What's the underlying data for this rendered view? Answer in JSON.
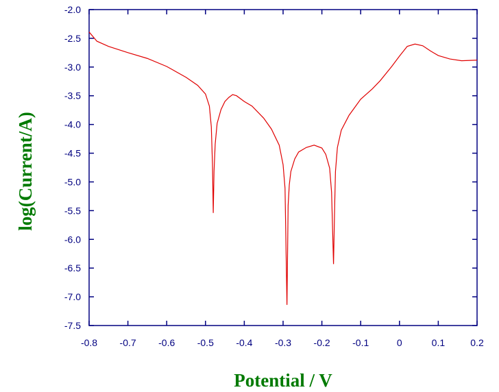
{
  "chart_data": {
    "type": "line",
    "xlabel": "Potential / V",
    "ylabel": "log(Current/A)",
    "x": [
      -0.8,
      -0.78,
      -0.75,
      -0.7,
      -0.65,
      -0.6,
      -0.55,
      -0.52,
      -0.5,
      -0.49,
      -0.485,
      -0.482,
      -0.48,
      -0.478,
      -0.475,
      -0.47,
      -0.46,
      -0.45,
      -0.44,
      -0.43,
      -0.42,
      -0.4,
      -0.38,
      -0.35,
      -0.33,
      -0.31,
      -0.3,
      -0.295,
      -0.29,
      -0.287,
      -0.284,
      -0.28,
      -0.27,
      -0.26,
      -0.24,
      -0.22,
      -0.2,
      -0.19,
      -0.18,
      -0.175,
      -0.17,
      -0.167,
      -0.165,
      -0.16,
      -0.15,
      -0.13,
      -0.1,
      -0.07,
      -0.05,
      -0.02,
      0,
      0.02,
      0.04,
      0.06,
      0.08,
      0.1,
      0.13,
      0.16,
      0.2
    ],
    "series": [
      {
        "color": "#e00000",
        "values": [
          -2.39,
          -2.55,
          -2.64,
          -2.75,
          -2.85,
          -2.99,
          -3.18,
          -3.32,
          -3.47,
          -3.68,
          -4.04,
          -4.7,
          -5.54,
          -4.82,
          -4.34,
          -3.98,
          -3.74,
          -3.6,
          -3.53,
          -3.48,
          -3.5,
          -3.6,
          -3.68,
          -3.89,
          -4.08,
          -4.36,
          -4.7,
          -5.11,
          -7.14,
          -5.41,
          -5.05,
          -4.82,
          -4.6,
          -4.48,
          -4.4,
          -4.36,
          -4.41,
          -4.52,
          -4.76,
          -5.18,
          -6.43,
          -5.41,
          -4.82,
          -4.4,
          -4.1,
          -3.84,
          -3.56,
          -3.38,
          -3.24,
          -2.99,
          -2.81,
          -2.64,
          -2.6,
          -2.63,
          -2.72,
          -2.8,
          -2.86,
          -2.89,
          -2.88
        ]
      }
    ],
    "xlim": [
      -0.8,
      0.2
    ],
    "xticks": [
      -0.8,
      -0.7,
      -0.6,
      -0.5,
      -0.4,
      -0.3,
      -0.2,
      -0.1,
      0,
      0.1,
      0.2
    ],
    "ylim": [
      -7.5,
      -2.0
    ],
    "yticks": [
      {
        "value": -2,
        "label": "-2.0"
      },
      -2.5,
      {
        "value": -3,
        "label": "-3.0"
      },
      -3.5,
      {
        "value": -4,
        "label": "-4.0"
      },
      -4.5,
      {
        "value": -5,
        "label": "-5.0"
      },
      -5.5,
      {
        "value": -6,
        "label": "-6.0"
      },
      -6.5,
      {
        "value": -7,
        "label": "-7.0"
      },
      -7.5
    ]
  }
}
